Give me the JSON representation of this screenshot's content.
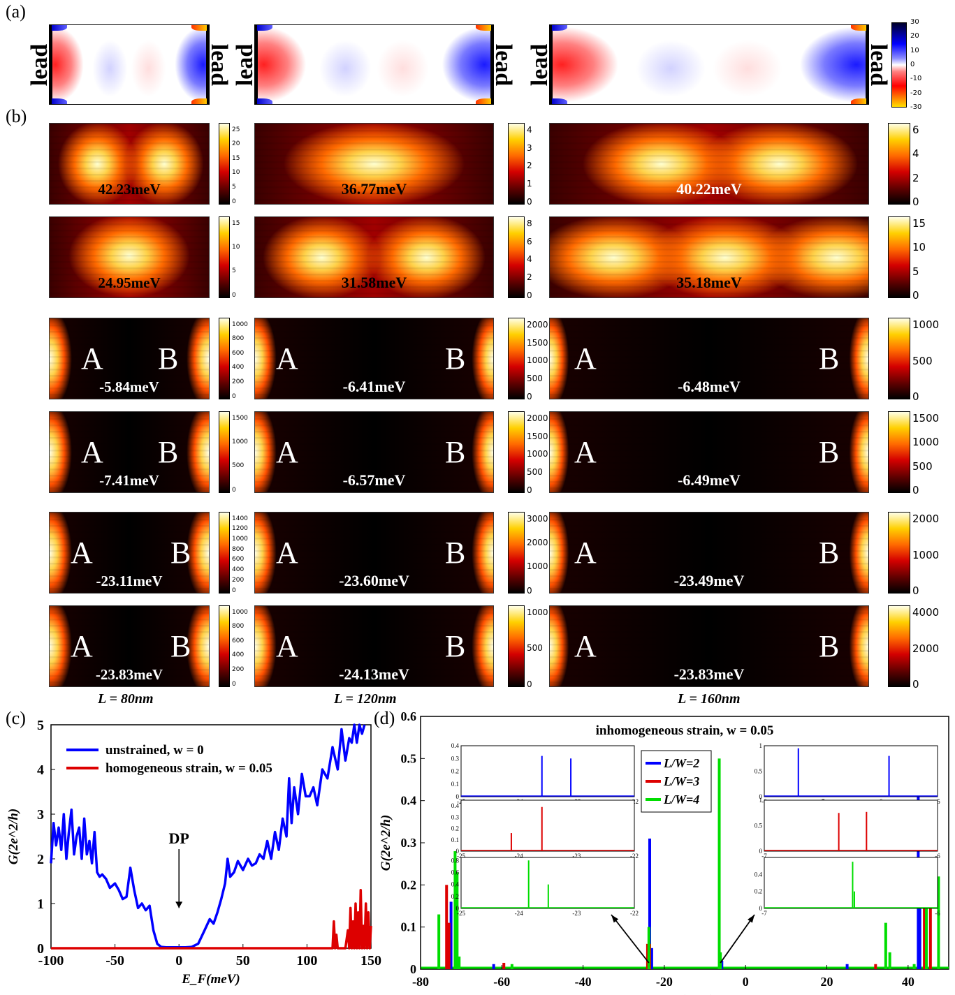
{
  "panel_labels": {
    "a": "(a)",
    "b": "(b)",
    "c": "(c)",
    "d": "(d)"
  },
  "lead_label": "lead",
  "colorbar_a": {
    "ticks": [
      "30",
      "20",
      "10",
      "0",
      "-10",
      "-20",
      "-30"
    ]
  },
  "panel_b": {
    "columns": [
      "L = 80nm",
      "L = 120nm",
      "L = 160nm"
    ],
    "rows": [
      {
        "energies": [
          "42.23meV",
          "36.77meV",
          "40.22meV"
        ],
        "ab": false,
        "cbar": [
          [
            "25",
            "20",
            "15",
            "10",
            "5",
            "0"
          ],
          [
            "4",
            "3",
            "2",
            "1",
            "0"
          ],
          [
            "6",
            "4",
            "2",
            "0"
          ]
        ]
      },
      {
        "energies": [
          "24.95meV",
          "31.58meV",
          "35.18meV"
        ],
        "ab": false,
        "cbar": [
          [
            "15",
            "10",
            "5",
            "0"
          ],
          [
            "8",
            "6",
            "4",
            "2",
            "0"
          ],
          [
            "15",
            "10",
            "5",
            "0"
          ]
        ]
      },
      {
        "energies": [
          "-5.84meV",
          "-6.41meV",
          "-6.48meV"
        ],
        "ab": true,
        "cbar": [
          [
            "1000",
            "800",
            "600",
            "400",
            "200",
            "0"
          ],
          [
            "2000",
            "1500",
            "1000",
            "500",
            "0"
          ],
          [
            "1000",
            "500",
            "0"
          ]
        ]
      },
      {
        "energies": [
          "-7.41meV",
          "-6.57meV",
          "-6.49meV"
        ],
        "ab": true,
        "cbar": [
          [
            "1500",
            "1000",
            "500",
            "0"
          ],
          [
            "2000",
            "1500",
            "1000",
            "500",
            "0"
          ],
          [
            "1500",
            "1000",
            "500",
            "0"
          ]
        ]
      },
      {
        "energies": [
          "-23.11meV",
          "-23.60meV",
          "-23.49meV"
        ],
        "ab": true,
        "cbar": [
          [
            "1400",
            "1200",
            "1000",
            "800",
            "600",
            "400",
            "200",
            "0"
          ],
          [
            "3000",
            "2000",
            "1000",
            "0"
          ],
          [
            "2000",
            "1000",
            "0"
          ]
        ]
      },
      {
        "energies": [
          "-23.83meV",
          "-24.13meV",
          "-23.83meV"
        ],
        "ab": true,
        "cbar": [
          [
            "1000",
            "800",
            "600",
            "400",
            "200",
            "0"
          ],
          [
            "1000",
            "500",
            "0"
          ],
          [
            "4000",
            "2000",
            "0"
          ]
        ]
      }
    ],
    "site_a": "A",
    "site_b": "B"
  },
  "chart_data": [
    {
      "type": "line",
      "panel": "(c)",
      "xlabel": "E_F(meV)",
      "ylabel": "G(2e^2/h)",
      "xlim": [
        -100,
        150
      ],
      "ylim": [
        0,
        5
      ],
      "xticks": [
        -100,
        -50,
        0,
        50,
        100,
        150
      ],
      "yticks": [
        0,
        1,
        2,
        3,
        4,
        5
      ],
      "annotation": "DP",
      "series": [
        {
          "name": "unstrained, w = 0",
          "color": "#0000ff",
          "x": [
            -100,
            -98,
            -96,
            -94,
            -92,
            -90,
            -88,
            -86,
            -84,
            -82,
            -80,
            -78,
            -76,
            -74,
            -72,
            -70,
            -68,
            -66,
            -64,
            -62,
            -60,
            -57,
            -54,
            -50,
            -47,
            -44,
            -41,
            -38,
            -35,
            -32,
            -29,
            -26,
            -23,
            -20,
            -17,
            -14,
            -10,
            -5,
            0,
            5,
            10,
            15,
            20,
            24,
            27,
            30,
            33,
            36,
            38,
            40,
            43,
            46,
            50,
            54,
            57,
            60,
            63,
            66,
            69,
            72,
            75,
            78,
            81,
            84,
            86,
            88,
            90,
            93,
            96,
            99,
            102,
            105,
            108,
            112,
            116,
            120,
            124,
            127,
            130,
            133,
            135,
            137,
            139,
            141,
            143,
            145
          ],
          "y": [
            1.9,
            2.8,
            2.3,
            2.7,
            2.2,
            3.0,
            2.0,
            2.6,
            3.1,
            2.1,
            2.5,
            2.7,
            2.0,
            2.9,
            2.1,
            2.4,
            1.9,
            2.6,
            1.7,
            1.6,
            1.65,
            1.55,
            1.35,
            1.45,
            1.3,
            1.1,
            1.15,
            1.8,
            1.3,
            0.9,
            1.0,
            0.85,
            0.95,
            0.4,
            0.1,
            0.03,
            0.02,
            0.02,
            0.02,
            0.02,
            0.03,
            0.1,
            0.4,
            0.65,
            0.55,
            0.8,
            1.1,
            1.45,
            2.0,
            1.6,
            1.7,
            1.95,
            1.75,
            2.0,
            1.85,
            1.9,
            2.1,
            2.0,
            2.4,
            2.0,
            2.6,
            2.2,
            2.9,
            2.5,
            3.8,
            2.8,
            3.6,
            3.0,
            3.9,
            3.4,
            3.4,
            3.6,
            3.2,
            4.0,
            3.8,
            4.5,
            4.0,
            4.9,
            4.2,
            4.7,
            4.6,
            5.0,
            4.6,
            5.0,
            4.8,
            5.0
          ]
        },
        {
          "name": "homogeneous strain, w = 0.05",
          "color": "#dd0000",
          "x": [
            -100,
            120,
            121,
            122,
            123,
            124,
            125,
            126,
            128,
            130,
            132,
            133,
            134,
            135,
            136,
            137,
            138,
            139,
            140,
            141,
            142,
            143,
            144,
            145,
            146,
            147,
            148,
            149,
            150
          ],
          "y": [
            0,
            0,
            0.6,
            0,
            0.3,
            0,
            0,
            0,
            0,
            0,
            0.4,
            0,
            0.9,
            0,
            0.6,
            0,
            1.0,
            0,
            0.8,
            0,
            1.3,
            0,
            0.5,
            0,
            1.0,
            0,
            0.8,
            0,
            0.5
          ]
        }
      ]
    },
    {
      "type": "bar",
      "panel": "(d)",
      "title": "inhomogeneous strain, w = 0.05",
      "xlabel": "E_F(meV)",
      "ylabel": "G(2e^2/h)",
      "xlim": [
        -80,
        50
      ],
      "ylim": [
        0,
        0.6
      ],
      "xticks": [
        -80,
        -60,
        -40,
        -20,
        0,
        20,
        40
      ],
      "yticks": [
        0,
        0.1,
        0.2,
        0.3,
        0.4,
        0.5,
        0.6
      ],
      "series": [
        {
          "name": "L/W=2",
          "color": "#0000ff",
          "x": [
            -72.5,
            -62.0,
            -23.6,
            -23.1,
            -5.84,
            25.0,
            42.5,
            42.9
          ],
          "y": [
            0.16,
            0.012,
            0.31,
            0.05,
            0.02,
            0.012,
            0.52,
            0.2
          ]
        },
        {
          "name": "L/W=3",
          "color": "#dd0000",
          "x": [
            -73.6,
            -73.0,
            -59.5,
            -24.13,
            -23.6,
            32.0,
            44.0,
            45.5
          ],
          "y": [
            0.2,
            0.11,
            0.015,
            0.06,
            0.06,
            0.012,
            0.21,
            0.17
          ]
        },
        {
          "name": "L/W=4",
          "color": "#00dd00",
          "x": [
            -75.5,
            -71.5,
            -71.0,
            -70.5,
            -57.5,
            -23.8,
            -6.48,
            -6.2,
            34.5,
            35.5,
            41.5,
            44.5,
            47.5
          ],
          "y": [
            0.13,
            0.28,
            0.23,
            0.03,
            0.012,
            0.1,
            0.5,
            0.04,
            0.11,
            0.04,
            0.012,
            0.24,
            0.22
          ]
        }
      ],
      "insets": [
        {
          "xlim": [
            -25,
            -22
          ],
          "ylim": [
            0,
            0.4
          ],
          "xticks": [
            "-25",
            "-24",
            "-23",
            "-22"
          ],
          "yticks": [
            "0",
            "0.1",
            "0.2",
            "0.3",
            "0.4"
          ],
          "color": "#0000ff",
          "peaks": [
            [
              -23.6,
              0.32
            ],
            [
              -23.1,
              0.3
            ]
          ]
        },
        {
          "xlim": [
            -25,
            -22
          ],
          "ylim": [
            0,
            0.45
          ],
          "xticks": [
            "-25",
            "-24",
            "-23",
            "-22"
          ],
          "yticks": [
            "0",
            "0.1",
            "0.2",
            "0.3",
            "0.4"
          ],
          "color": "#dd0000",
          "peaks": [
            [
              -24.13,
              0.16
            ],
            [
              -23.6,
              0.39
            ]
          ]
        },
        {
          "xlim": [
            -25,
            -22
          ],
          "ylim": [
            0,
            0.85
          ],
          "xticks": [
            "-25",
            "-24",
            "-23",
            "-22"
          ],
          "yticks": [
            "0",
            "0.2",
            "0.4",
            "0.6",
            "0.8"
          ],
          "color": "#00dd00",
          "peaks": [
            [
              -23.83,
              0.8
            ],
            [
              -23.49,
              0.4
            ]
          ]
        },
        {
          "xlim": [
            -8,
            -5
          ],
          "ylim": [
            0,
            1
          ],
          "xticks": [
            "-8",
            "-7",
            "-6",
            "-5"
          ],
          "yticks": [
            "0",
            "0.5",
            "1"
          ],
          "color": "#0000ff",
          "peaks": [
            [
              -7.41,
              0.95
            ],
            [
              -5.84,
              0.8
            ]
          ]
        },
        {
          "xlim": [
            -7,
            -6
          ],
          "ylim": [
            0,
            1
          ],
          "xticks": [
            "-7",
            "-6"
          ],
          "yticks": [
            "0",
            "0.5",
            "1"
          ],
          "color": "#dd0000",
          "peaks": [
            [
              -6.57,
              0.75
            ],
            [
              -6.41,
              0.77
            ]
          ]
        },
        {
          "xlim": [
            -7,
            -6
          ],
          "ylim": [
            0,
            0.6
          ],
          "xticks": [
            "-7",
            "-6"
          ],
          "yticks": [
            "0",
            "0.2",
            "0.4"
          ],
          "color": "#00dd00",
          "peaks": [
            [
              -6.49,
              0.55
            ],
            [
              -6.48,
              0.2
            ]
          ]
        }
      ]
    }
  ]
}
